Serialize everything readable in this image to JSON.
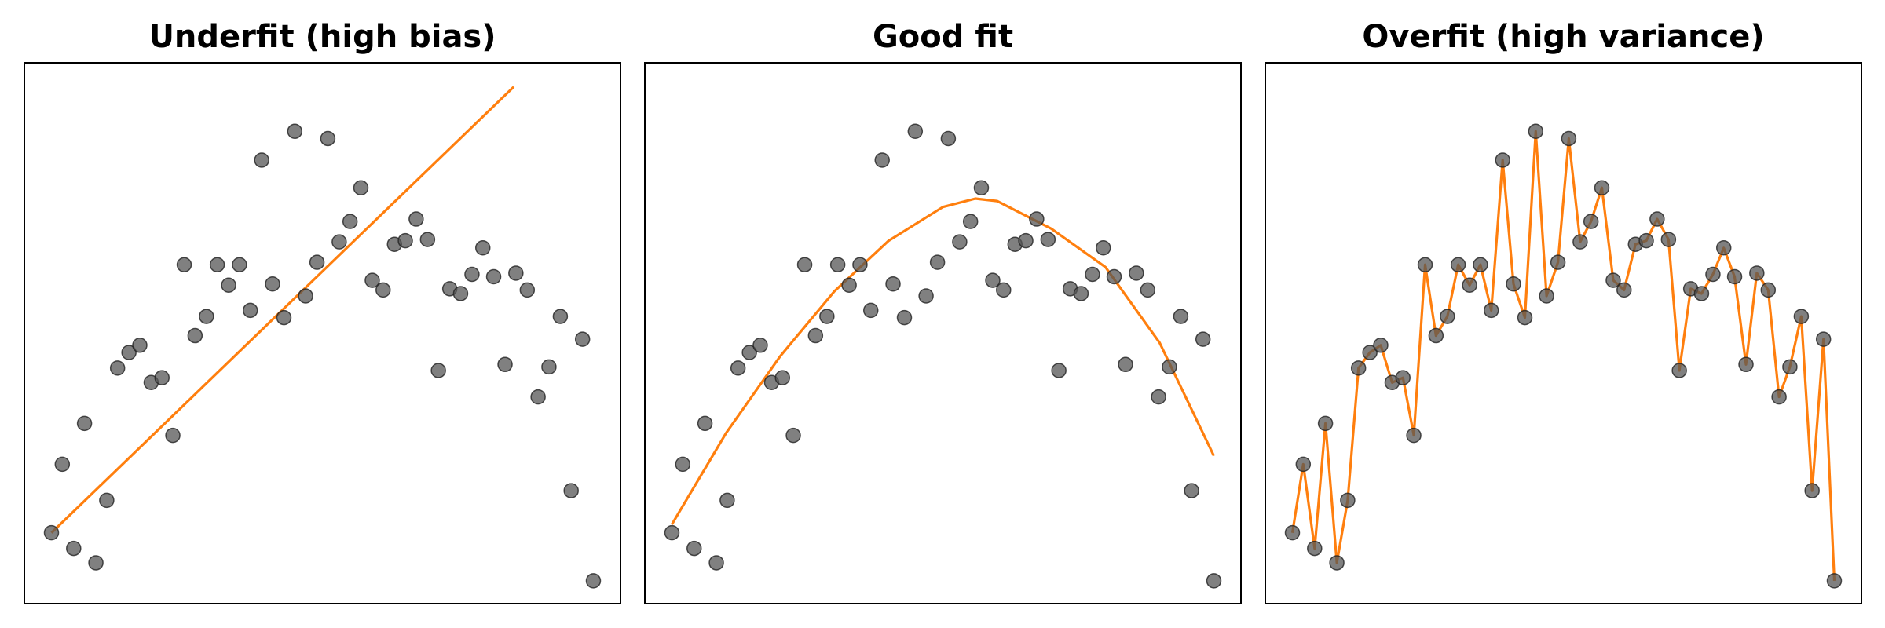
{
  "chart_data": [
    {
      "type": "scatter",
      "title": "Underfit (high bias)",
      "x": [
        0,
        0.02,
        0.041,
        0.061,
        0.082,
        0.102,
        0.122,
        0.143,
        0.163,
        0.184,
        0.204,
        0.224,
        0.245,
        0.265,
        0.286,
        0.306,
        0.327,
        0.347,
        0.367,
        0.388,
        0.408,
        0.429,
        0.449,
        0.469,
        0.49,
        0.51,
        0.531,
        0.551,
        0.571,
        0.592,
        0.612,
        0.633,
        0.653,
        0.673,
        0.694,
        0.714,
        0.735,
        0.755,
        0.776,
        0.796,
        0.816,
        0.837,
        0.857,
        0.878,
        0.898,
        0.918,
        0.939,
        0.959,
        0.98,
        1.0
      ],
      "y": [
        0.57,
        1.14,
        0.44,
        1.48,
        0.32,
        0.84,
        1.94,
        2.07,
        2.13,
        1.82,
        1.86,
        1.38,
        2.8,
        2.21,
        2.37,
        2.8,
        2.63,
        2.8,
        2.42,
        3.67,
        2.64,
        2.36,
        3.91,
        2.54,
        2.82,
        3.85,
        2.99,
        3.16,
        3.44,
        2.67,
        2.59,
        2.97,
        3.0,
        3.18,
        3.01,
        1.92,
        2.6,
        2.56,
        2.72,
        2.94,
        2.7,
        1.97,
        2.73,
        2.59,
        1.7,
        1.95,
        2.37,
        0.92,
        2.18,
        0.17
      ],
      "fit": {
        "x": [
          0,
          0.853
        ],
        "y": [
          0.57,
          4.28
        ]
      },
      "xlim": [
        -0.05,
        1.05
      ],
      "ylim": [
        -0.02,
        4.48
      ],
      "point_color": "#555555",
      "fit_color": "#ff7f0e"
    },
    {
      "type": "scatter",
      "title": "Good fit",
      "x": [
        0,
        0.02,
        0.041,
        0.061,
        0.082,
        0.102,
        0.122,
        0.143,
        0.163,
        0.184,
        0.204,
        0.224,
        0.245,
        0.265,
        0.286,
        0.306,
        0.327,
        0.347,
        0.367,
        0.388,
        0.408,
        0.429,
        0.449,
        0.469,
        0.49,
        0.51,
        0.531,
        0.551,
        0.571,
        0.592,
        0.612,
        0.633,
        0.653,
        0.673,
        0.694,
        0.714,
        0.735,
        0.755,
        0.776,
        0.796,
        0.816,
        0.837,
        0.857,
        0.878,
        0.898,
        0.918,
        0.939,
        0.959,
        0.98,
        1.0
      ],
      "y": [
        0.57,
        1.14,
        0.44,
        1.48,
        0.32,
        0.84,
        1.94,
        2.07,
        2.13,
        1.82,
        1.86,
        1.38,
        2.8,
        2.21,
        2.37,
        2.8,
        2.63,
        2.8,
        2.42,
        3.67,
        2.64,
        2.36,
        3.91,
        2.54,
        2.82,
        3.85,
        2.99,
        3.16,
        3.44,
        2.67,
        2.59,
        2.97,
        3.0,
        3.18,
        3.01,
        1.92,
        2.6,
        2.56,
        2.72,
        2.94,
        2.7,
        1.97,
        2.73,
        2.59,
        1.7,
        1.95,
        2.37,
        0.92,
        2.18,
        0.17
      ],
      "fit": {
        "x": [
          0,
          0.1,
          0.2,
          0.3,
          0.4,
          0.5,
          0.56,
          0.6,
          0.7,
          0.8,
          0.9,
          1.0
        ],
        "y": [
          0.64,
          1.4,
          2.04,
          2.58,
          3.0,
          3.28,
          3.35,
          3.33,
          3.1,
          2.78,
          2.15,
          1.21
        ]
      },
      "xlim": [
        -0.05,
        1.05
      ],
      "ylim": [
        -0.02,
        4.48
      ],
      "point_color": "#555555",
      "fit_color": "#ff7f0e"
    },
    {
      "type": "scatter",
      "title": "Overfit (high variance)",
      "x": [
        0,
        0.02,
        0.041,
        0.061,
        0.082,
        0.102,
        0.122,
        0.143,
        0.163,
        0.184,
        0.204,
        0.224,
        0.245,
        0.265,
        0.286,
        0.306,
        0.327,
        0.347,
        0.367,
        0.388,
        0.408,
        0.429,
        0.449,
        0.469,
        0.49,
        0.51,
        0.531,
        0.551,
        0.571,
        0.592,
        0.612,
        0.633,
        0.653,
        0.673,
        0.694,
        0.714,
        0.735,
        0.755,
        0.776,
        0.796,
        0.816,
        0.837,
        0.857,
        0.878,
        0.898,
        0.918,
        0.939,
        0.959,
        0.98,
        1.0
      ],
      "y": [
        0.57,
        1.14,
        0.44,
        1.48,
        0.32,
        0.84,
        1.94,
        2.07,
        2.13,
        1.82,
        1.86,
        1.38,
        2.8,
        2.21,
        2.37,
        2.8,
        2.63,
        2.8,
        2.42,
        3.67,
        2.64,
        2.36,
        3.91,
        2.54,
        2.82,
        3.85,
        2.99,
        3.16,
        3.44,
        2.67,
        2.59,
        2.97,
        3.0,
        3.18,
        3.01,
        1.92,
        2.6,
        2.56,
        2.72,
        2.94,
        2.7,
        1.97,
        2.73,
        2.59,
        1.7,
        1.95,
        2.37,
        0.92,
        2.18,
        0.17
      ],
      "fit": {
        "x": [
          0,
          0.02,
          0.041,
          0.061,
          0.082,
          0.102,
          0.122,
          0.143,
          0.163,
          0.184,
          0.204,
          0.224,
          0.245,
          0.265,
          0.286,
          0.306,
          0.327,
          0.347,
          0.367,
          0.388,
          0.408,
          0.429,
          0.449,
          0.469,
          0.49,
          0.51,
          0.531,
          0.551,
          0.571,
          0.592,
          0.612,
          0.633,
          0.653,
          0.673,
          0.694,
          0.714,
          0.735,
          0.755,
          0.776,
          0.796,
          0.816,
          0.837,
          0.857,
          0.878,
          0.898,
          0.918,
          0.939,
          0.959,
          0.98,
          1.0
        ],
        "y": [
          0.57,
          1.14,
          0.44,
          1.48,
          0.32,
          0.84,
          1.94,
          2.07,
          2.13,
          1.82,
          1.86,
          1.38,
          2.8,
          2.21,
          2.37,
          2.8,
          2.63,
          2.8,
          2.42,
          3.67,
          2.64,
          2.36,
          3.91,
          2.54,
          2.82,
          3.85,
          2.99,
          3.16,
          3.44,
          2.67,
          2.59,
          2.97,
          3.0,
          3.18,
          3.01,
          1.92,
          2.6,
          2.56,
          2.72,
          2.94,
          2.7,
          1.97,
          2.73,
          2.59,
          1.7,
          1.95,
          2.37,
          0.92,
          2.18,
          0.17
        ]
      },
      "xlim": [
        -0.05,
        1.05
      ],
      "ylim": [
        -0.02,
        4.48
      ],
      "point_color": "#555555",
      "fit_color": "#ff7f0e"
    }
  ]
}
